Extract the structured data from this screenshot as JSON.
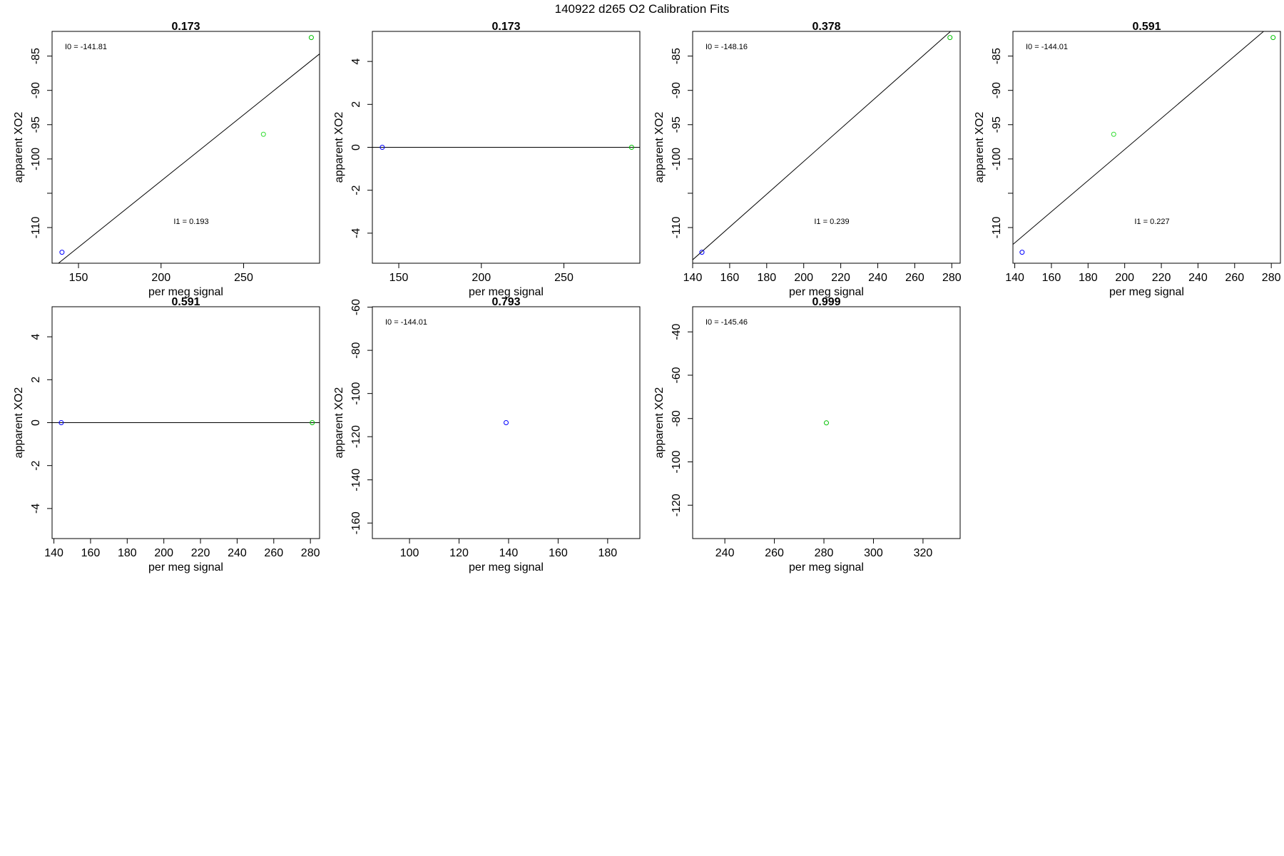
{
  "figure_title": "140922   d265   O2 Calibration Fits",
  "colors": {
    "frame": "#000000",
    "fit_line": "#000000",
    "blue": "#0000ff",
    "green": "#00c000",
    "lightgreen": "#33dd33"
  },
  "chart_data": [
    {
      "type": "scatter",
      "title": "0.173",
      "xlabel": "per meg signal",
      "ylabel": "apparent XO2",
      "xlim": [
        134,
        296
      ],
      "ylim": [
        -115.2,
        -81.4
      ],
      "xticks": [
        150,
        200,
        250
      ],
      "xtick_labels": [
        "150",
        "200",
        "250"
      ],
      "yticks": [
        -110,
        -105,
        -100,
        -95,
        -90,
        -85
      ],
      "ytick_labels": [
        "-110",
        "",
        "-100",
        "-95",
        "-90",
        "-85"
      ],
      "points": [
        {
          "x": 140,
          "y": -113.6,
          "color": "blue"
        },
        {
          "x": 262,
          "y": -96.4,
          "color": "lightgreen"
        },
        {
          "x": 291,
          "y": -82.3,
          "color": "green"
        }
      ],
      "fit_line": {
        "intercept": -141.81,
        "slope": 0.193
      },
      "annotations": [
        {
          "text": "I0 =  -141.81",
          "pos": "top-left"
        },
        {
          "text": "I1 =  0.193",
          "pos": "lower-middle"
        }
      ]
    },
    {
      "type": "scatter",
      "title": "0.173",
      "xlabel": "per meg signal",
      "ylabel": "apparent XO2",
      "xlim": [
        134,
        296
      ],
      "ylim": [
        -5.4,
        5.4
      ],
      "xticks": [
        150,
        200,
        250
      ],
      "xtick_labels": [
        "150",
        "200",
        "250"
      ],
      "yticks": [
        -4,
        -2,
        0,
        2,
        4
      ],
      "ytick_labels": [
        "-4",
        "-2",
        "0",
        "2",
        "4"
      ],
      "points": [
        {
          "x": 140,
          "y": 0,
          "color": "blue"
        },
        {
          "x": 291,
          "y": 0,
          "color": "green"
        }
      ],
      "fit_line": {
        "intercept": 0,
        "slope": 0
      },
      "annotations": []
    },
    {
      "type": "scatter",
      "title": "0.378",
      "xlabel": "per meg signal",
      "ylabel": "apparent XO2",
      "xlim": [
        140,
        284.5
      ],
      "ylim": [
        -115.2,
        -81.4
      ],
      "xticks": [
        140,
        160,
        180,
        200,
        220,
        240,
        260,
        280
      ],
      "xtick_labels": [
        "140",
        "160",
        "180",
        "200",
        "220",
        "240",
        "260",
        "280"
      ],
      "yticks": [
        -110,
        -105,
        -100,
        -95,
        -90,
        -85
      ],
      "ytick_labels": [
        "-110",
        "",
        "-100",
        "-95",
        "-90",
        "-85"
      ],
      "points": [
        {
          "x": 145,
          "y": -113.6,
          "color": "blue"
        },
        {
          "x": 279,
          "y": -82.3,
          "color": "green"
        }
      ],
      "fit_line": {
        "intercept": -148.16,
        "slope": 0.239
      },
      "annotations": [
        {
          "text": "I0 =  -148.16",
          "pos": "top-left"
        },
        {
          "text": "I1 =  0.239",
          "pos": "lower-middle"
        }
      ]
    },
    {
      "type": "scatter",
      "title": "0.591",
      "xlabel": "per meg signal",
      "ylabel": "apparent XO2",
      "xlim": [
        139,
        285
      ],
      "ylim": [
        -115.2,
        -81.4
      ],
      "xticks": [
        140,
        160,
        180,
        200,
        220,
        240,
        260,
        280
      ],
      "xtick_labels": [
        "140",
        "160",
        "180",
        "200",
        "220",
        "240",
        "260",
        "280"
      ],
      "yticks": [
        -110,
        -105,
        -100,
        -95,
        -90,
        -85
      ],
      "ytick_labels": [
        "-110",
        "",
        "-100",
        "-95",
        "-90",
        "-85"
      ],
      "points": [
        {
          "x": 144,
          "y": -113.6,
          "color": "blue"
        },
        {
          "x": 194,
          "y": -96.4,
          "color": "lightgreen"
        },
        {
          "x": 281,
          "y": -82.3,
          "color": "green"
        }
      ],
      "fit_line": {
        "intercept": -144.01,
        "slope": 0.227
      },
      "annotations": [
        {
          "text": "I0 =  -144.01",
          "pos": "top-left"
        },
        {
          "text": "I1 =  0.227",
          "pos": "lower-middle"
        }
      ]
    },
    {
      "type": "scatter",
      "title": "0.591",
      "xlabel": "per meg signal",
      "ylabel": "apparent XO2",
      "xlim": [
        139,
        285
      ],
      "ylim": [
        -5.4,
        5.4
      ],
      "xticks": [
        140,
        160,
        180,
        200,
        220,
        240,
        260,
        280
      ],
      "xtick_labels": [
        "140",
        "160",
        "180",
        "200",
        "220",
        "240",
        "260",
        "280"
      ],
      "yticks": [
        -4,
        -2,
        0,
        2,
        4
      ],
      "ytick_labels": [
        "-4",
        "-2",
        "0",
        "2",
        "4"
      ],
      "points": [
        {
          "x": 144,
          "y": 0,
          "color": "blue"
        },
        {
          "x": 281,
          "y": 0,
          "color": "green"
        }
      ],
      "fit_line": {
        "intercept": 0,
        "slope": 0
      },
      "annotations": []
    },
    {
      "type": "scatter",
      "title": "0.793",
      "xlabel": "per meg signal",
      "ylabel": "apparent XO2",
      "xlim": [
        85,
        193
      ],
      "ylim": [
        -167.2,
        -59.8
      ],
      "xticks": [
        100,
        120,
        140,
        160,
        180
      ],
      "xtick_labels": [
        "100",
        "120",
        "140",
        "160",
        "180"
      ],
      "yticks": [
        -160,
        -140,
        -120,
        -100,
        -80,
        -60
      ],
      "ytick_labels": [
        "-160",
        "-140",
        "-120",
        "-100",
        "-80",
        "-60"
      ],
      "points": [
        {
          "x": 139,
          "y": -113.5,
          "color": "blue"
        }
      ],
      "fit_line": null,
      "annotations": [
        {
          "text": "I0 =  -144.01",
          "pos": "top-left"
        }
      ]
    },
    {
      "type": "scatter",
      "title": "0.999",
      "xlabel": "per meg signal",
      "ylabel": "apparent XO2",
      "xlim": [
        227,
        335
      ],
      "ylim": [
        -135.4,
        -28.4
      ],
      "xticks": [
        240,
        260,
        280,
        300,
        320
      ],
      "xtick_labels": [
        "240",
        "260",
        "280",
        "300",
        "320"
      ],
      "yticks": [
        -120,
        -100,
        -80,
        -60,
        -40
      ],
      "ytick_labels": [
        "-120",
        "-100",
        "-80",
        "-60",
        "-40"
      ],
      "points": [
        {
          "x": 281,
          "y": -82,
          "color": "green"
        }
      ],
      "fit_line": null,
      "annotations": [
        {
          "text": "I0 =  -145.46",
          "pos": "top-left"
        }
      ]
    }
  ]
}
